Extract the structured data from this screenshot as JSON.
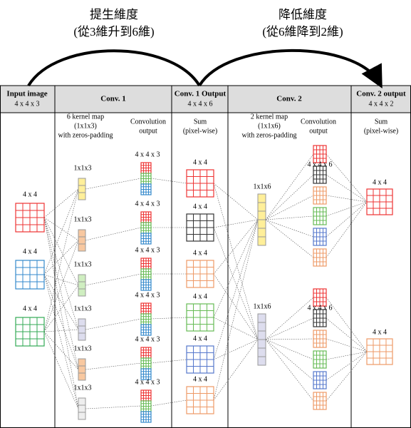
{
  "header_left": {
    "title": "提生維度",
    "subtitle": "(從3維升到6維)"
  },
  "header_right": {
    "title": "降低維度",
    "subtitle": "(從6維降到2維)"
  },
  "columns": [
    {
      "title": "Input image",
      "shape": "4 x 4 x 3"
    },
    {
      "title": "Conv. 1"
    },
    {
      "title": "Conv. 1 Output",
      "shape": "4 x 4 x 6"
    },
    {
      "title": "Conv. 2"
    },
    {
      "title": "Conv. 2 output",
      "shape": "4 x 4 x 2"
    }
  ],
  "subheaders": [
    {
      "lines": [
        "6 kernel map",
        "(1x1x3)",
        "with zeros-padding"
      ]
    },
    {
      "lines": [
        "Convolution",
        "output"
      ]
    },
    {
      "lines": [
        "Sum",
        "(pixel-wise)"
      ]
    },
    {
      "lines": [
        "2 kernel map",
        "(1x1x6)",
        "with zeros-padding"
      ]
    },
    {
      "lines": [
        "Convolution",
        "output"
      ]
    },
    {
      "lines": [
        "Sum",
        "(pixel-wise)"
      ]
    }
  ],
  "input_labels": [
    "4 x 4",
    "4 x 4",
    "4 x 4"
  ],
  "conv1_kernel_labels": [
    "1x1x3",
    "1x1x3",
    "1x1x3",
    "1x1x3",
    "1x1x3",
    "1x1x3"
  ],
  "conv1_output_labels": [
    "4 x 4 x 3",
    "4 x 4 x 3",
    "4 x 4 x 3",
    "4 x 4 x 3",
    "4 x 4 x 3",
    "4 x 4 x 3"
  ],
  "conv1_sum_labels": [
    "4 x 4",
    "4 x 4",
    "4 x 4",
    "4 x 4",
    "4 x 4",
    "4 x 4"
  ],
  "conv2_kernel_labels": [
    "1x1x6",
    "1x1x6"
  ],
  "conv2_output_labels": [
    "4 x 4 x 6",
    "4 x 4 x 6"
  ],
  "conv2_sum_labels": [
    "4 x 4",
    "4 x 4"
  ]
}
